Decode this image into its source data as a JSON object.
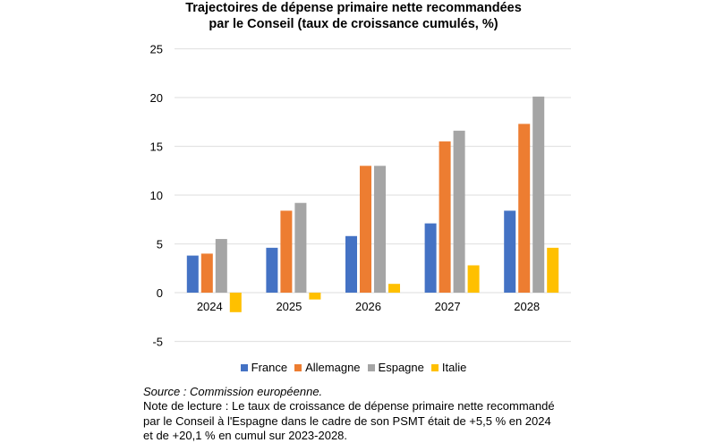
{
  "chart_data": {
    "type": "bar",
    "title": "Trajectoires de dépense primaire nette recommandées par le Conseil (taux de croissance cumulés, %)",
    "title_lines": [
      "Trajectoires de dépense primaire nette recommandées",
      "par le Conseil (taux de croissance cumulés, %)"
    ],
    "categories": [
      "2024",
      "2025",
      "2026",
      "2027",
      "2028"
    ],
    "series": [
      {
        "name": "France",
        "color": "#4472C4",
        "values": [
          3.8,
          4.6,
          5.8,
          7.1,
          8.4
        ]
      },
      {
        "name": "Allemagne",
        "color": "#ED7D31",
        "values": [
          4.0,
          8.4,
          13.0,
          15.5,
          17.3
        ]
      },
      {
        "name": "Espagne",
        "color": "#A5A5A5",
        "values": [
          5.5,
          9.2,
          13.0,
          16.6,
          20.1
        ]
      },
      {
        "name": "Italie",
        "color": "#FFC000",
        "values": [
          -2.0,
          -0.7,
          0.9,
          2.8,
          4.6
        ]
      }
    ],
    "ylim": [
      -5,
      25
    ],
    "yticks": [
      "-5",
      "0",
      "5",
      "10",
      "15",
      "20",
      "25"
    ],
    "grid": true,
    "legend": "bottom",
    "xlabel": "",
    "ylabel": ""
  },
  "notes": {
    "source": "Source : Commission européenne.",
    "lines": [
      "Note de lecture : Le taux de croissance de dépense primaire nette recommandé",
      "par le Conseil à l'Espagne dans le cadre de son PSMT était de +5,5 % en 2024",
      "et de +20,1 % en cumul sur 2023-2028."
    ]
  }
}
